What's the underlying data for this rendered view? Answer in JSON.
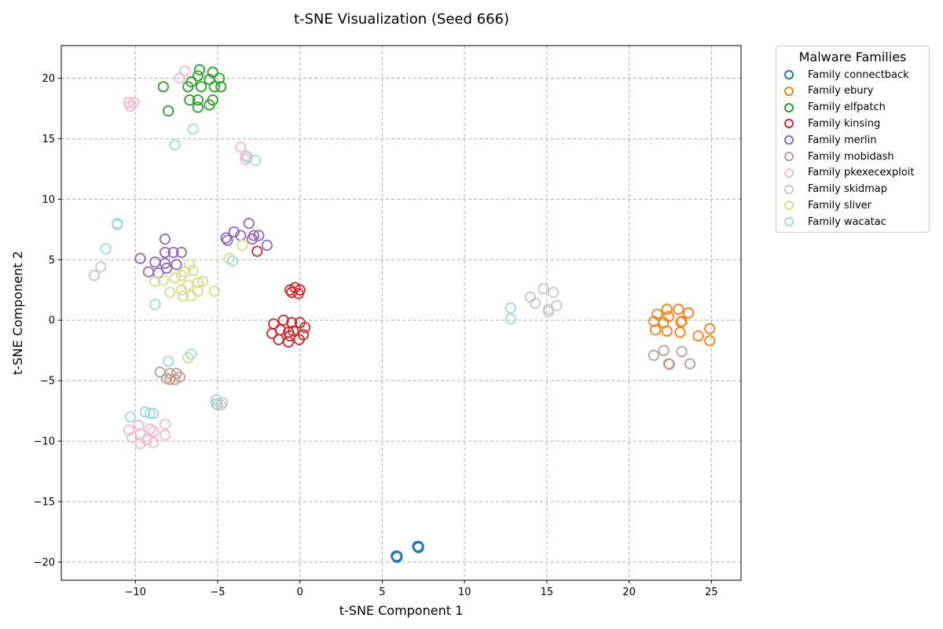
{
  "chart_data": {
    "type": "scatter",
    "title": "t-SNE Visualization (Seed 666)",
    "xlabel": "t-SNE Component 1",
    "ylabel": "t-SNE Component 2",
    "xlim": [
      -14.5,
      26.8
    ],
    "ylim": [
      -21.5,
      22.7
    ],
    "xticks": [
      -10,
      -5,
      0,
      5,
      10,
      15,
      20,
      25
    ],
    "yticks": [
      -20,
      -15,
      -10,
      -5,
      0,
      5,
      10,
      15,
      20
    ],
    "grid": true,
    "marker": "hollow-circle",
    "legend": {
      "title": "Malware Families",
      "placement": "outside-upper-right"
    },
    "series": [
      {
        "name": "Family connectback",
        "color": "#1f77b4",
        "points": [
          [
            5.9,
            -19.5
          ],
          [
            5.9,
            -19.6
          ],
          [
            5.85,
            -19.5
          ],
          [
            7.2,
            -18.7
          ],
          [
            7.2,
            -18.8
          ],
          [
            7.15,
            -18.7
          ]
        ]
      },
      {
        "name": "Family ebury",
        "color": "#ff7f0e",
        "points": [
          [
            21.7,
            0.5
          ],
          [
            22.3,
            0.9
          ],
          [
            23.0,
            0.9
          ],
          [
            23.6,
            0.6
          ],
          [
            21.5,
            -0.1
          ],
          [
            22.1,
            -0.2
          ],
          [
            22.4,
            0.3
          ],
          [
            23.2,
            -0.1
          ],
          [
            21.6,
            -0.8
          ],
          [
            22.3,
            -0.9
          ],
          [
            23.1,
            -1.0
          ],
          [
            24.2,
            -1.3
          ],
          [
            24.9,
            -0.7
          ],
          [
            24.9,
            -1.7
          ],
          [
            23.15,
            -0.15
          ]
        ]
      },
      {
        "name": "Family elfpatch",
        "color": "#2ca02c",
        "points": [
          [
            -6.1,
            20.7
          ],
          [
            -5.3,
            20.5
          ],
          [
            -6.2,
            20.2
          ],
          [
            -5.5,
            19.9
          ],
          [
            -4.9,
            20.0
          ],
          [
            -6.6,
            19.7
          ],
          [
            -6.0,
            19.3
          ],
          [
            -5.2,
            19.3
          ],
          [
            -4.8,
            19.3
          ],
          [
            -6.8,
            19.3
          ],
          [
            -8.3,
            19.3
          ],
          [
            -6.7,
            18.2
          ],
          [
            -6.2,
            18.2
          ],
          [
            -5.3,
            18.2
          ],
          [
            -5.5,
            17.8
          ],
          [
            -6.2,
            17.6
          ],
          [
            -8.0,
            17.3
          ]
        ]
      },
      {
        "name": "Family kinsing",
        "color": "#d62728",
        "points": [
          [
            -0.6,
            2.5
          ],
          [
            -0.3,
            2.7
          ],
          [
            0.0,
            2.5
          ],
          [
            -0.5,
            2.3
          ],
          [
            -0.1,
            2.2
          ],
          [
            -1.0,
            0.0
          ],
          [
            -1.6,
            -0.3
          ],
          [
            -0.5,
            -0.2
          ],
          [
            0.0,
            -0.2
          ],
          [
            0.3,
            -0.6
          ],
          [
            -1.2,
            -0.8
          ],
          [
            -0.7,
            -1.0
          ],
          [
            -0.4,
            -0.9
          ],
          [
            -1.7,
            -1.1
          ],
          [
            -0.6,
            -1.3
          ],
          [
            0.2,
            -1.2
          ],
          [
            -1.3,
            -1.6
          ],
          [
            -0.7,
            -1.8
          ],
          [
            -0.05,
            -1.6
          ],
          [
            -2.6,
            5.7
          ]
        ]
      },
      {
        "name": "Family merlin",
        "color": "#9467bd",
        "points": [
          [
            -3.1,
            8.0
          ],
          [
            -4.0,
            7.3
          ],
          [
            -3.6,
            7.0
          ],
          [
            -2.8,
            7.0
          ],
          [
            -2.5,
            7.0
          ],
          [
            -4.5,
            6.8
          ],
          [
            -4.4,
            6.6
          ],
          [
            -2.9,
            6.7
          ],
          [
            -2.0,
            6.2
          ],
          [
            -8.2,
            6.7
          ],
          [
            -8.2,
            5.6
          ],
          [
            -7.7,
            5.6
          ],
          [
            -7.2,
            5.6
          ],
          [
            -9.7,
            5.1
          ],
          [
            -8.8,
            4.8
          ],
          [
            -8.2,
            4.7
          ],
          [
            -7.5,
            4.6
          ],
          [
            -8.1,
            4.3
          ],
          [
            -9.2,
            4.0
          ],
          [
            -8.6,
            3.9
          ]
        ]
      },
      {
        "name": "Family mobidash",
        "color": "#c49c94",
        "points": [
          [
            -8.5,
            -4.3
          ],
          [
            -7.9,
            -4.4
          ],
          [
            -7.5,
            -4.4
          ],
          [
            -8.1,
            -4.8
          ],
          [
            -7.3,
            -4.7
          ],
          [
            -7.9,
            -4.9
          ],
          [
            -7.6,
            -4.9
          ],
          [
            22.1,
            -2.5
          ],
          [
            23.2,
            -2.6
          ],
          [
            21.5,
            -2.9
          ],
          [
            22.4,
            -3.6
          ],
          [
            23.7,
            -3.6
          ],
          [
            22.45,
            -3.65
          ]
        ]
      },
      {
        "name": "Family pkexecexploit",
        "color": "#f7b6d2",
        "points": [
          [
            -7.0,
            20.6
          ],
          [
            -7.3,
            20.0
          ],
          [
            -10.4,
            18.0
          ],
          [
            -10.1,
            18.0
          ],
          [
            -10.3,
            17.7
          ],
          [
            -3.6,
            14.3
          ],
          [
            -3.3,
            13.6
          ],
          [
            -3.3,
            13.3
          ],
          [
            -9.8,
            -8.7
          ],
          [
            -8.2,
            -8.6
          ],
          [
            -9.1,
            -9.0
          ],
          [
            -8.9,
            -9.2
          ],
          [
            -10.4,
            -9.1
          ],
          [
            -9.7,
            -9.4
          ],
          [
            -8.2,
            -9.5
          ],
          [
            -10.2,
            -9.7
          ],
          [
            -9.3,
            -9.9
          ],
          [
            -8.9,
            -10.1
          ],
          [
            -9.7,
            -10.2
          ]
        ]
      },
      {
        "name": "Family skidmap",
        "color": "#c7c7c7",
        "points": [
          [
            14.8,
            2.6
          ],
          [
            15.4,
            2.3
          ],
          [
            14.0,
            1.9
          ],
          [
            14.3,
            1.4
          ],
          [
            15.6,
            1.2
          ],
          [
            15.1,
            0.9
          ],
          [
            15.1,
            0.7
          ],
          [
            -12.1,
            4.4
          ],
          [
            -12.5,
            3.7
          ],
          [
            -5.1,
            -6.9
          ],
          [
            -4.8,
            -7.0
          ],
          [
            -5.0,
            -7.0
          ],
          [
            -4.7,
            -6.8
          ]
        ]
      },
      {
        "name": "Family sliver",
        "color": "#dbdb8d",
        "points": [
          [
            -6.7,
            4.6
          ],
          [
            -7.0,
            4.0
          ],
          [
            -6.5,
            4.1
          ],
          [
            -7.6,
            3.5
          ],
          [
            -7.2,
            3.7
          ],
          [
            -8.3,
            3.3
          ],
          [
            -8.8,
            3.2
          ],
          [
            -6.2,
            3.1
          ],
          [
            -5.9,
            3.2
          ],
          [
            -6.8,
            2.9
          ],
          [
            -7.9,
            2.3
          ],
          [
            -7.2,
            2.5
          ],
          [
            -6.2,
            2.4
          ],
          [
            -5.2,
            2.4
          ],
          [
            -7.1,
            2.0
          ],
          [
            -6.6,
            2.0
          ],
          [
            -4.3,
            5.1
          ],
          [
            -3.5,
            6.2
          ],
          [
            -6.8,
            -3.1
          ]
        ]
      },
      {
        "name": "Family wacatac",
        "color": "#9edae5",
        "points": [
          [
            -6.5,
            15.8
          ],
          [
            -7.6,
            14.5
          ],
          [
            -3.2,
            13.5
          ],
          [
            -2.7,
            13.2
          ],
          [
            -11.1,
            8.0
          ],
          [
            -11.1,
            7.9
          ],
          [
            -11.8,
            5.9
          ],
          [
            -4.1,
            4.9
          ],
          [
            -8.8,
            1.3
          ],
          [
            12.8,
            1.0
          ],
          [
            12.8,
            0.1
          ],
          [
            -8.0,
            -3.4
          ],
          [
            -6.6,
            -2.8
          ],
          [
            -5.1,
            -6.6
          ],
          [
            -9.4,
            -7.6
          ],
          [
            -9.1,
            -7.7
          ],
          [
            -8.9,
            -7.7
          ],
          [
            -10.3,
            -8.0
          ]
        ]
      }
    ]
  }
}
